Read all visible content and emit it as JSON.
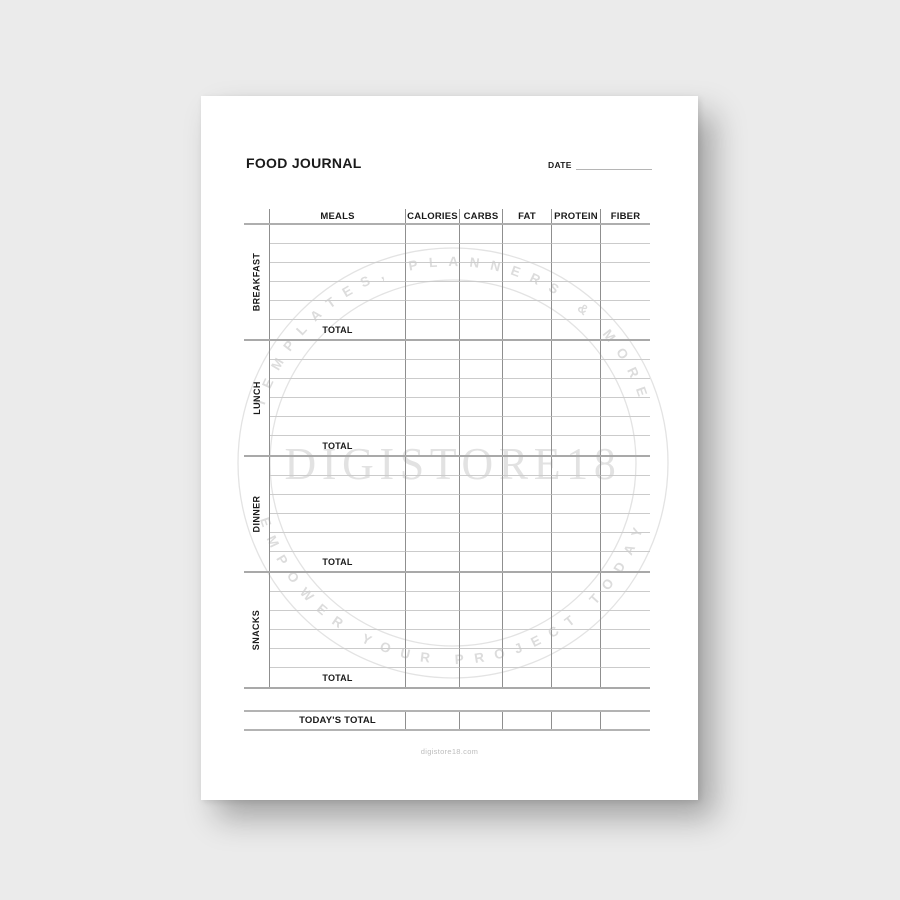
{
  "header": {
    "title": "FOOD JOURNAL",
    "date_label": "DATE"
  },
  "table": {
    "columns": [
      "MEALS",
      "CALORIES",
      "CARBS",
      "FAT",
      "PROTEIN",
      "FIBER"
    ],
    "sections": [
      {
        "label": "BREAKFAST",
        "data_rows": 5,
        "total_label": "TOTAL"
      },
      {
        "label": "LUNCH",
        "data_rows": 5,
        "total_label": "TOTAL"
      },
      {
        "label": "DINNER",
        "data_rows": 5,
        "total_label": "TOTAL"
      },
      {
        "label": "SNACKS",
        "data_rows": 5,
        "total_label": "TOTAL"
      }
    ],
    "grand_total_label": "TODAY'S TOTAL"
  },
  "watermark": {
    "arc_top": "TEMPLATES, PLANNERS & MORE",
    "center": "DIGISTORE18",
    "arc_bottom": "EMPOWER YOUR PROJECT TODAY"
  },
  "footer": {
    "site": "digistore18.com"
  },
  "colors": {
    "canvas_bg": "#ebebeb",
    "page_bg": "#ffffff",
    "text": "#1a1a1a",
    "grid_vertical": "#8f8f8f",
    "grid_row_line": "#cbcbcb",
    "section_divider": "#a9a9a9",
    "watermark": "#dfdfdf",
    "footer_text": "#bdbdbd"
  }
}
